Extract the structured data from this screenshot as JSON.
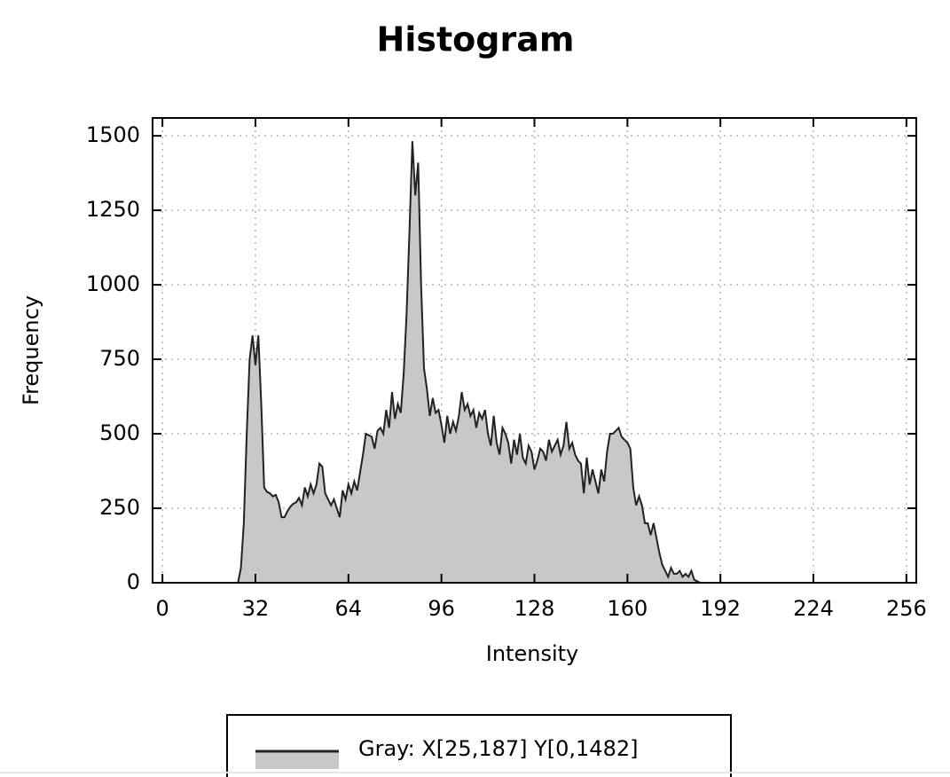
{
  "chart_data": {
    "type": "area",
    "title": "Histogram",
    "x_label": "Intensity",
    "y_label": "Frequency",
    "xlim": [
      -3.4,
      259.4
    ],
    "ylim": [
      0,
      1560
    ],
    "xticks": [
      0,
      32,
      64,
      96,
      128,
      160,
      192,
      224,
      256
    ],
    "yticks": [
      0,
      250,
      500,
      750,
      1000,
      1250,
      1500
    ],
    "grid": true,
    "legend": "bottom",
    "x": [
      25,
      26,
      27,
      28,
      29,
      30,
      31,
      32,
      33,
      34,
      35,
      36,
      37,
      38,
      39,
      40,
      41,
      42,
      43,
      44,
      45,
      46,
      47,
      48,
      49,
      50,
      51,
      52,
      53,
      54,
      55,
      56,
      57,
      58,
      59,
      60,
      61,
      62,
      63,
      64,
      65,
      66,
      67,
      68,
      69,
      70,
      71,
      72,
      73,
      74,
      75,
      76,
      77,
      78,
      79,
      80,
      81,
      82,
      83,
      84,
      85,
      86,
      87,
      88,
      89,
      90,
      91,
      92,
      93,
      94,
      95,
      96,
      97,
      98,
      99,
      100,
      101,
      102,
      103,
      104,
      105,
      106,
      107,
      108,
      109,
      110,
      111,
      112,
      113,
      114,
      115,
      116,
      117,
      118,
      119,
      120,
      121,
      122,
      123,
      124,
      125,
      126,
      127,
      128,
      129,
      130,
      131,
      132,
      133,
      134,
      135,
      136,
      137,
      138,
      139,
      140,
      141,
      142,
      143,
      144,
      145,
      146,
      147,
      148,
      149,
      150,
      151,
      152,
      153,
      154,
      155,
      156,
      157,
      158,
      159,
      160,
      161,
      162,
      163,
      164,
      165,
      166,
      167,
      168,
      169,
      170,
      171,
      172,
      173,
      174,
      175,
      176,
      177,
      178,
      179,
      180,
      181,
      182,
      183,
      184,
      185,
      186,
      187
    ],
    "series": [
      {
        "name": "Gray: X[25,187] Y[0,1482]",
        "color": "#c8c8c8",
        "line_color": "#222222",
        "values": [
          0,
          0,
          50,
          200,
          500,
          750,
          830,
          730,
          830,
          600,
          320,
          305,
          300,
          290,
          295,
          270,
          220,
          220,
          240,
          255,
          265,
          270,
          285,
          260,
          320,
          290,
          330,
          300,
          330,
          400,
          390,
          300,
          280,
          260,
          280,
          250,
          220,
          310,
          280,
          330,
          300,
          340,
          310,
          370,
          430,
          500,
          495,
          490,
          450,
          510,
          520,
          500,
          580,
          520,
          640,
          550,
          600,
          570,
          700,
          900,
          1180,
          1482,
          1300,
          1410,
          1000,
          720,
          650,
          560,
          620,
          570,
          580,
          530,
          470,
          560,
          500,
          540,
          510,
          560,
          640,
          580,
          600,
          560,
          580,
          520,
          570,
          550,
          580,
          500,
          460,
          560,
          470,
          430,
          520,
          500,
          470,
          400,
          480,
          430,
          500,
          420,
          400,
          460,
          440,
          380,
          410,
          450,
          440,
          410,
          480,
          440,
          460,
          480,
          430,
          460,
          540,
          450,
          470,
          430,
          410,
          400,
          300,
          420,
          330,
          380,
          340,
          300,
          380,
          340,
          440,
          500,
          500,
          510,
          520,
          490,
          480,
          470,
          450,
          320,
          260,
          290,
          260,
          200,
          200,
          160,
          200,
          150,
          100,
          60,
          40,
          20,
          50,
          30,
          30,
          40,
          20,
          30,
          20,
          40,
          10,
          5,
          0,
          0,
          0
        ]
      }
    ]
  }
}
